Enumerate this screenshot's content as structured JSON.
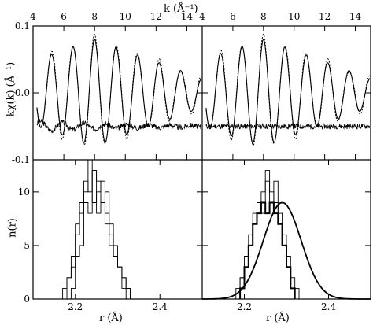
{
  "labels": {
    "top_xlabel": "k (Å⁻¹)",
    "top_ylabel": "kχ(k) (Å⁻¹)",
    "bottom_ylabel": "n(r)",
    "bottom_left_xlabel": "r (Å)",
    "bottom_right_xlabel": "r (Å)"
  },
  "chart_data": [
    {
      "panel": "top-left",
      "type": "line",
      "xlabel": "k (Å⁻¹)",
      "ylabel": "kχ(k) (Å⁻¹)",
      "xlim": [
        4,
        15
      ],
      "ylim": [
        -0.1,
        0.1
      ],
      "x_ticks": [
        4,
        6,
        8,
        10,
        12,
        14
      ],
      "y_ticks": [
        -0.1,
        0,
        0.1
      ],
      "x_tick_labels_position": "top",
      "series_description": "solid fit and dotted data oscillation; residual trace near -0.05",
      "oscillation": {
        "period_k": 1.4,
        "first_peak_k": 5.2,
        "amplitude_k4": 0.048,
        "amplitude_k8": 0.08,
        "amplitude_k14": 0.03,
        "baseline": 0.0
      },
      "residual_baseline": -0.05
    },
    {
      "panel": "top-right",
      "type": "line",
      "xlim": [
        4,
        15
      ],
      "ylim": [
        -0.1,
        0.1
      ],
      "x_ticks": [
        4,
        6,
        8,
        10,
        12,
        14
      ],
      "y_ticks": [
        -0.1,
        0,
        0.1
      ],
      "x_tick_labels_position": "top",
      "oscillation": {
        "period_k": 1.4,
        "first_peak_k": 5.2,
        "amplitude_k4": 0.05,
        "amplitude_k8": 0.08,
        "amplitude_k14": 0.03,
        "baseline": 0.0
      },
      "residual_baseline": -0.05
    },
    {
      "panel": "bottom-left",
      "type": "bar",
      "xlabel": "r (Å)",
      "ylabel": "n(r)",
      "xlim": [
        2.1,
        2.5
      ],
      "ylim": [
        0,
        13
      ],
      "x_ticks": [
        2.2,
        2.4
      ],
      "y_ticks": [
        0,
        5,
        10
      ],
      "histogram_bin_width": 0.01,
      "histograms": [
        {
          "start": 2.17,
          "values": [
            1,
            2,
            4,
            7,
            9,
            11,
            10,
            12,
            8,
            9,
            7,
            5,
            4,
            3,
            2,
            1
          ]
        },
        {
          "start": 2.18,
          "values": [
            2,
            3,
            6,
            8,
            10,
            13,
            9,
            10,
            11,
            8,
            6,
            4,
            3,
            1
          ]
        },
        {
          "start": 2.19,
          "values": [
            1,
            4,
            5,
            9,
            8,
            12,
            11,
            9,
            10,
            7,
            5,
            3,
            2,
            1
          ]
        }
      ]
    },
    {
      "panel": "bottom-right",
      "type": "bar",
      "xlabel": "r (Å)",
      "xlim": [
        2.1,
        2.5
      ],
      "ylim": [
        0,
        13
      ],
      "x_ticks": [
        2.2,
        2.4
      ],
      "y_ticks": [
        0,
        5,
        10
      ],
      "histogram_bin_width": 0.01,
      "histograms": [
        {
          "start": 2.18,
          "values": [
            1,
            2,
            4,
            6,
            8,
            9,
            10,
            12,
            9,
            11,
            8,
            6,
            4,
            2,
            1
          ]
        },
        {
          "start": 2.19,
          "values": [
            2,
            3,
            5,
            7,
            9,
            8,
            11,
            10,
            9,
            7,
            5,
            3,
            1
          ]
        }
      ],
      "bold_histogram": {
        "start": 2.19,
        "values": [
          1,
          3,
          5,
          7,
          8,
          9,
          8,
          9,
          8,
          7,
          5,
          3,
          1
        ]
      },
      "gaussian_fit": {
        "center": 2.29,
        "sigma": 0.045,
        "peak": 9.0
      }
    }
  ]
}
